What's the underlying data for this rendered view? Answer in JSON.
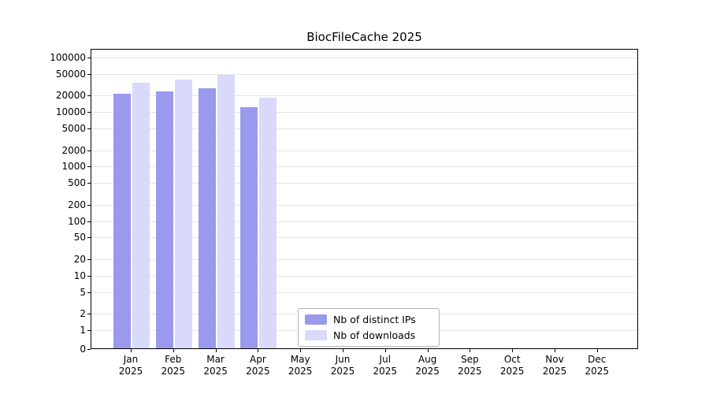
{
  "chart_data": {
    "type": "bar",
    "title": "BiocFileCache 2025",
    "y_scale": "log",
    "grid": "horizontal",
    "legend_position": "inside-bottom-center",
    "y_ticks": [
      0,
      1,
      2,
      5,
      10,
      20,
      50,
      100,
      200,
      500,
      1000,
      2000,
      5000,
      10000,
      20000,
      50000,
      100000
    ],
    "ylim": [
      0,
      150000
    ],
    "categories": [
      {
        "month": "Jan",
        "year": "2025"
      },
      {
        "month": "Feb",
        "year": "2025"
      },
      {
        "month": "Mar",
        "year": "2025"
      },
      {
        "month": "Apr",
        "year": "2025"
      },
      {
        "month": "May",
        "year": "2025"
      },
      {
        "month": "Jun",
        "year": "2025"
      },
      {
        "month": "Jul",
        "year": "2025"
      },
      {
        "month": "Aug",
        "year": "2025"
      },
      {
        "month": "Sep",
        "year": "2025"
      },
      {
        "month": "Oct",
        "year": "2025"
      },
      {
        "month": "Nov",
        "year": "2025"
      },
      {
        "month": "Dec",
        "year": "2025"
      }
    ],
    "series": [
      {
        "name": "Nb of distinct IPs",
        "color": "#9999ee",
        "values": [
          21000,
          23000,
          26000,
          12000,
          null,
          null,
          null,
          null,
          null,
          null,
          null,
          null
        ]
      },
      {
        "name": "Nb of downloads",
        "color": "#d9d9f9",
        "values": [
          33000,
          38000,
          47000,
          18000,
          null,
          null,
          null,
          null,
          null,
          null,
          null,
          null
        ]
      }
    ]
  },
  "colors": {
    "grid": "#e5e5e5",
    "axis": "#000000",
    "background": "#ffffff"
  }
}
